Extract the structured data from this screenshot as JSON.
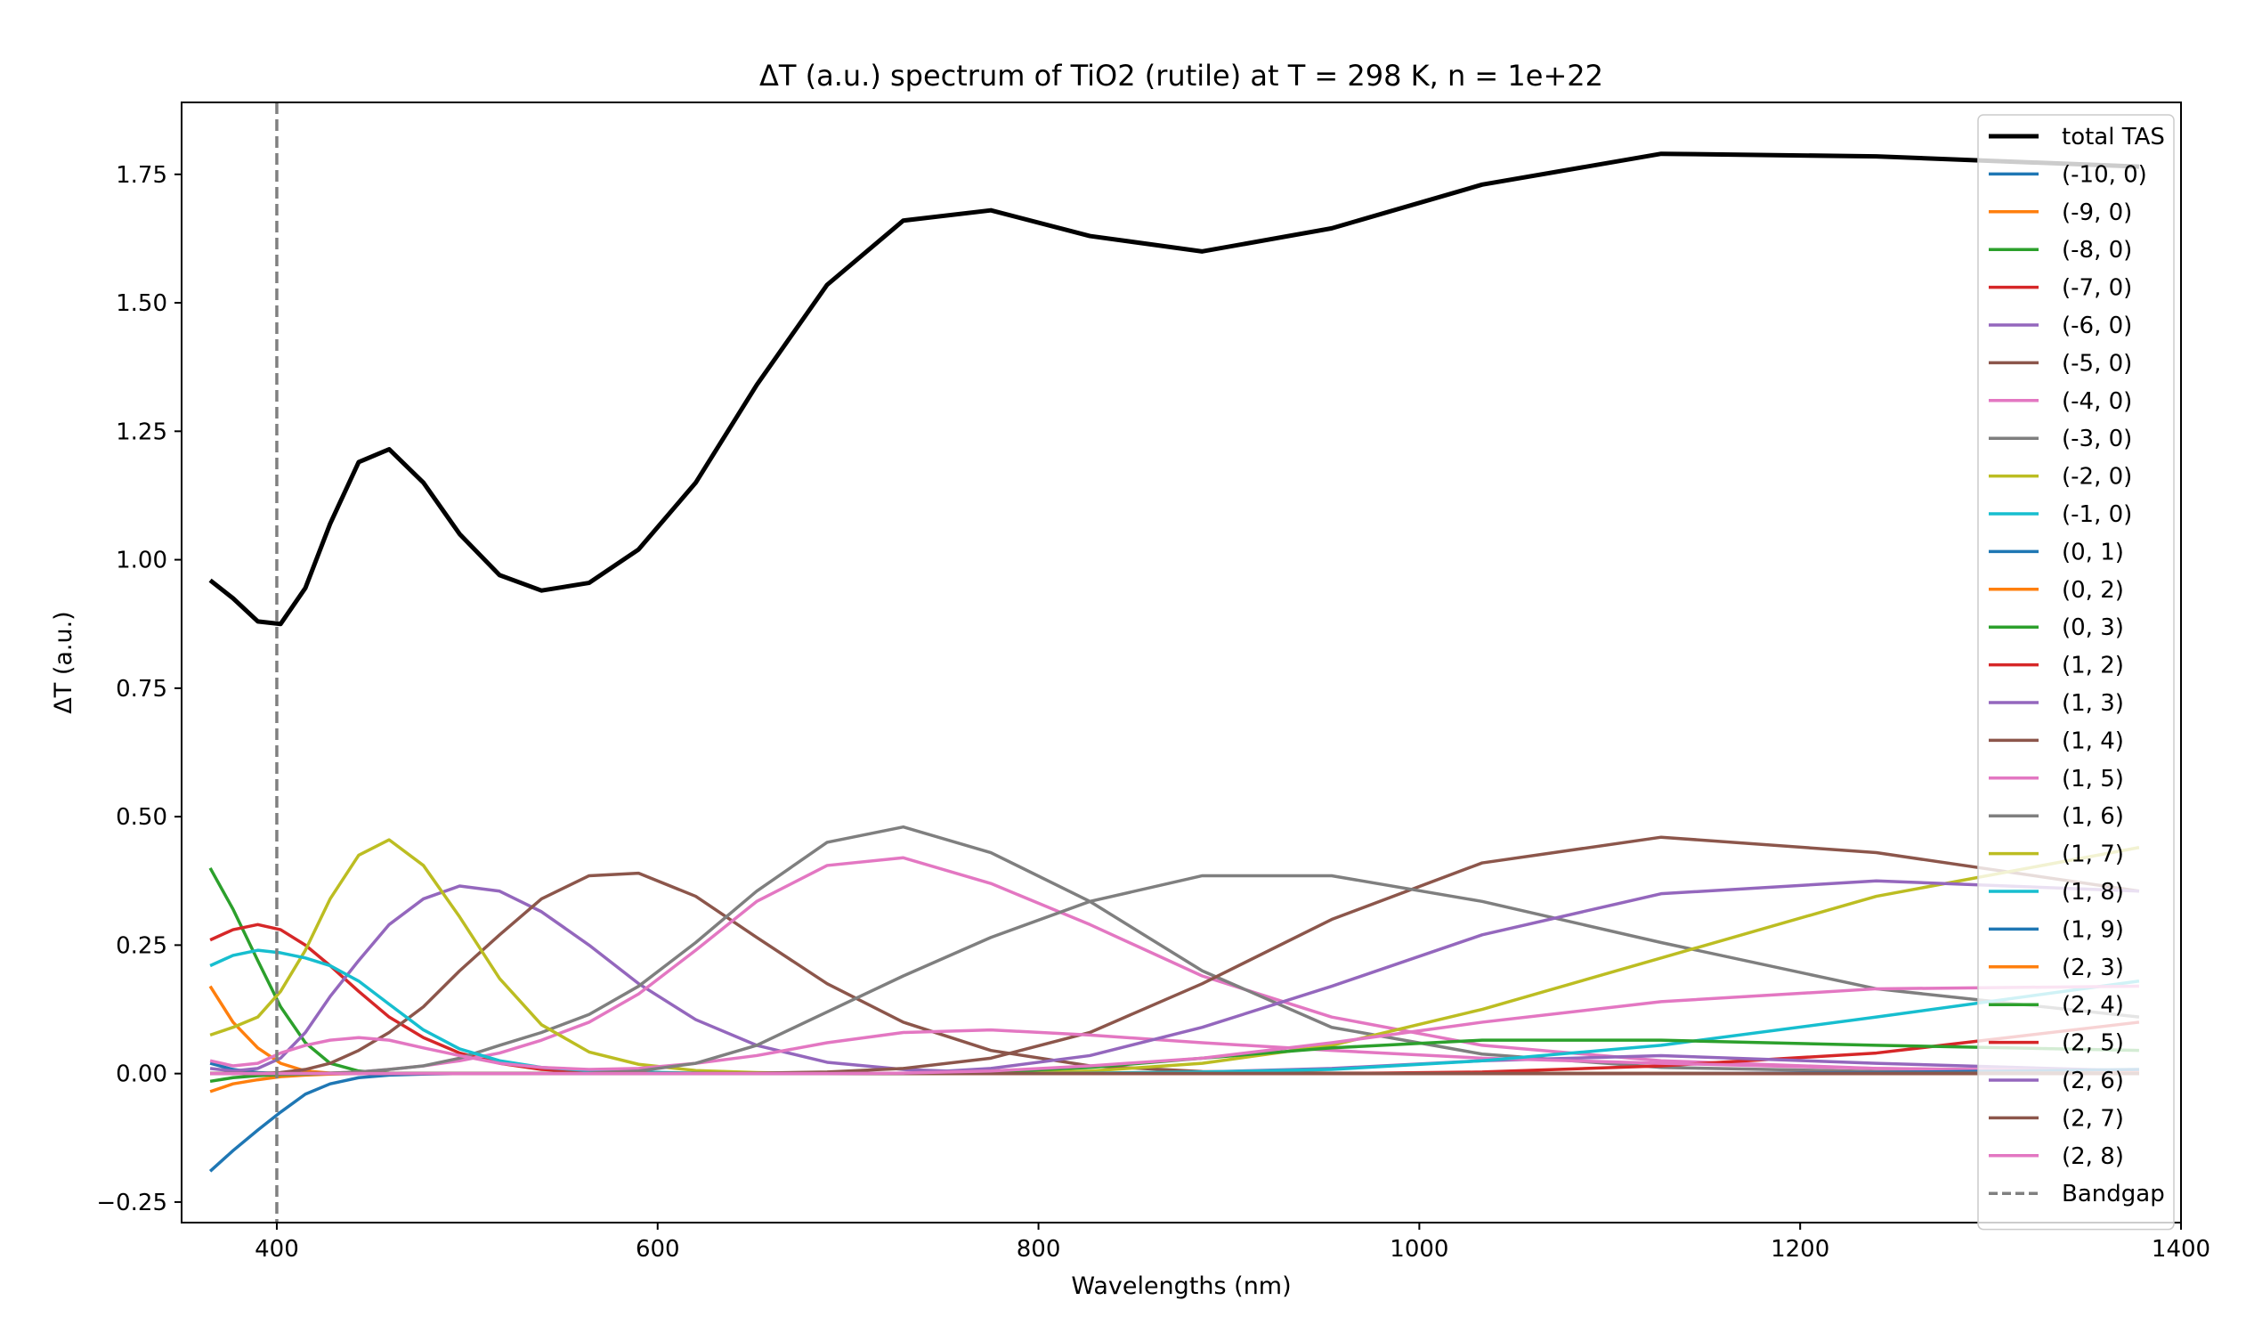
{
  "chart_data": {
    "type": "line",
    "title": "ΔT (a.u.) spectrum of TiO2 (rutile) at T = 298 K, n = 1e+22",
    "xlabel": "Wavelengths (nm)",
    "ylabel": "ΔT (a.u.)",
    "xlim": [
      350,
      1400
    ],
    "ylim": [
      -0.29,
      1.89
    ],
    "xticks": [
      400,
      600,
      800,
      1000,
      1200,
      1400
    ],
    "xtick_labels": [
      "400",
      "600",
      "800",
      "1000",
      "1200",
      "1400"
    ],
    "yticks": [
      -0.25,
      0.0,
      0.25,
      0.5,
      0.75,
      1.0,
      1.25,
      1.5,
      1.75
    ],
    "ytick_labels": [
      "−0.25",
      "0.00",
      "0.25",
      "0.50",
      "0.75",
      "1.00",
      "1.25",
      "1.50",
      "1.75"
    ],
    "grid": false,
    "legend_position": "top-right",
    "x": [
      365,
      377,
      390,
      402,
      415,
      428,
      443,
      459,
      477,
      496,
      517,
      539,
      564,
      590,
      620,
      652,
      689,
      729,
      775,
      827,
      886,
      954,
      1033,
      1127,
      1240,
      1378
    ],
    "bandgap": {
      "name": "Bandgap",
      "x": 400,
      "color": "#808080"
    },
    "series": [
      {
        "name": "total TAS",
        "color": "#000000",
        "width": 5,
        "values": [
          0.96,
          0.925,
          0.88,
          0.875,
          0.945,
          1.07,
          1.19,
          1.215,
          1.15,
          1.05,
          0.97,
          0.94,
          0.955,
          1.02,
          1.15,
          1.34,
          1.535,
          1.66,
          1.68,
          1.63,
          1.6,
          1.645,
          1.73,
          1.79,
          1.785,
          1.765
        ]
      },
      {
        "name": "(-10, 0)",
        "color": "#1f77b4",
        "width": 3.5,
        "values": [
          0.02,
          0.008,
          0.002,
          0.0,
          0,
          0,
          0,
          0,
          0,
          0,
          0,
          0,
          0,
          0,
          0,
          0,
          0,
          0,
          0,
          0,
          0,
          0,
          0,
          0,
          0,
          0
        ]
      },
      {
        "name": "(-9, 0)",
        "color": "#ff7f0e",
        "width": 3.5,
        "values": [
          0.17,
          0.1,
          0.05,
          0.02,
          0.005,
          0.001,
          0,
          0,
          0,
          0,
          0,
          0,
          0,
          0,
          0,
          0,
          0,
          0,
          0,
          0,
          0,
          0,
          0,
          0,
          0,
          0
        ]
      },
      {
        "name": "(-8, 0)",
        "color": "#2ca02c",
        "width": 3.5,
        "values": [
          0.4,
          0.32,
          0.22,
          0.13,
          0.06,
          0.02,
          0.005,
          0.001,
          0,
          0,
          0,
          0,
          0,
          0,
          0,
          0,
          0,
          0,
          0,
          0,
          0,
          0,
          0,
          0,
          0,
          0
        ]
      },
      {
        "name": "(-7, 0)",
        "color": "#d62728",
        "width": 3.5,
        "values": [
          0.26,
          0.28,
          0.29,
          0.28,
          0.25,
          0.21,
          0.16,
          0.11,
          0.07,
          0.04,
          0.02,
          0.008,
          0.003,
          0.001,
          0,
          0,
          0,
          0,
          0,
          0,
          0,
          0,
          0,
          0,
          0,
          0
        ]
      },
      {
        "name": "(-6, 0)",
        "color": "#9467bd",
        "width": 3.5,
        "values": [
          0.01,
          0.005,
          0.01,
          0.03,
          0.08,
          0.15,
          0.22,
          0.29,
          0.34,
          0.365,
          0.355,
          0.315,
          0.25,
          0.175,
          0.105,
          0.055,
          0.022,
          0.008,
          0.002,
          0,
          0,
          0,
          0,
          0,
          0,
          0
        ]
      },
      {
        "name": "(-5, 0)",
        "color": "#8c564b",
        "width": 3.5,
        "values": [
          0,
          0,
          0,
          0.002,
          0.008,
          0.02,
          0.045,
          0.08,
          0.13,
          0.2,
          0.27,
          0.34,
          0.385,
          0.39,
          0.345,
          0.265,
          0.175,
          0.1,
          0.045,
          0.015,
          0.004,
          0.001,
          0,
          0,
          0,
          0
        ]
      },
      {
        "name": "(-4, 0)",
        "color": "#e377c2",
        "width": 3.5,
        "values": [
          0,
          0,
          0,
          0,
          0,
          0.001,
          0.003,
          0.008,
          0.015,
          0.025,
          0.04,
          0.065,
          0.1,
          0.155,
          0.24,
          0.335,
          0.405,
          0.42,
          0.37,
          0.29,
          0.19,
          0.11,
          0.055,
          0.025,
          0.01,
          0.003
        ]
      },
      {
        "name": "(-3, 0)",
        "color": "#7f7f7f",
        "width": 3.5,
        "values": [
          0,
          0,
          0,
          0,
          0,
          0.001,
          0.003,
          0.008,
          0.015,
          0.03,
          0.055,
          0.08,
          0.115,
          0.17,
          0.255,
          0.355,
          0.45,
          0.48,
          0.43,
          0.335,
          0.2,
          0.09,
          0.038,
          0.012,
          0.004,
          0.001
        ]
      },
      {
        "name": "(-2, 0)",
        "color": "#bcbd22",
        "width": 3.5,
        "values": [
          0.075,
          0.09,
          0.11,
          0.16,
          0.24,
          0.34,
          0.425,
          0.455,
          0.405,
          0.305,
          0.185,
          0.095,
          0.042,
          0.018,
          0.006,
          0.002,
          0,
          0,
          0,
          0,
          0,
          0,
          0,
          0,
          0,
          0
        ]
      },
      {
        "name": "(-1, 0)",
        "color": "#17becf",
        "width": 3.5,
        "values": [
          0.21,
          0.23,
          0.24,
          0.235,
          0.225,
          0.21,
          0.18,
          0.135,
          0.085,
          0.048,
          0.025,
          0.012,
          0.006,
          0.003,
          0.001,
          0,
          0,
          0,
          0,
          0,
          0,
          0,
          0,
          0,
          0,
          0
        ]
      },
      {
        "name": "(0, 1)",
        "color": "#1f77b4",
        "width": 3.5,
        "values": [
          -0.19,
          -0.15,
          -0.11,
          -0.075,
          -0.04,
          -0.02,
          -0.008,
          -0.003,
          -0.001,
          0,
          0,
          0,
          0,
          0,
          0,
          0,
          0,
          0,
          0,
          0,
          0,
          0,
          0,
          0,
          0,
          0
        ]
      },
      {
        "name": "(0, 2)",
        "color": "#ff7f0e",
        "width": 3.5,
        "values": [
          -0.035,
          -0.02,
          -0.012,
          -0.006,
          -0.003,
          -0.001,
          0,
          0,
          0,
          0,
          0,
          0,
          0,
          0,
          0,
          0,
          0,
          0,
          0,
          0,
          0,
          0,
          0,
          0,
          0,
          0
        ]
      },
      {
        "name": "(0, 3)",
        "color": "#2ca02c",
        "width": 3.5,
        "values": [
          -0.015,
          -0.008,
          -0.004,
          -0.002,
          -0.001,
          0,
          0,
          0,
          0,
          0,
          0,
          0,
          0,
          0,
          0,
          0,
          0,
          0,
          0,
          0,
          0,
          0,
          0,
          0,
          0,
          0
        ]
      },
      {
        "name": "(1, 2)",
        "color": "#d62728",
        "width": 3.5,
        "values": [
          0,
          0,
          0,
          0,
          0,
          0,
          0,
          0,
          0,
          0,
          0,
          0,
          0,
          0,
          0,
          0,
          0,
          0,
          0,
          0,
          0,
          0,
          0.003,
          0.015,
          0.04,
          0.1
        ]
      },
      {
        "name": "(1, 3)",
        "color": "#9467bd",
        "width": 3.5,
        "values": [
          0,
          0,
          0,
          0,
          0,
          0,
          0,
          0,
          0,
          0,
          0,
          0,
          0,
          0,
          0,
          0,
          0,
          0,
          0,
          0,
          0.003,
          0.01,
          0.025,
          0.035,
          0.02,
          0.005
        ]
      },
      {
        "name": "(1, 4)",
        "color": "#8c564b",
        "width": 3.5,
        "values": [
          0,
          0,
          0,
          0,
          0,
          0,
          0,
          0,
          0,
          0,
          0,
          0,
          0,
          0,
          0,
          0.001,
          0.003,
          0.01,
          0.03,
          0.08,
          0.175,
          0.3,
          0.41,
          0.46,
          0.43,
          0.355
        ]
      },
      {
        "name": "(1, 5)",
        "color": "#e377c2",
        "width": 3.5,
        "values": [
          0.025,
          0.015,
          0.02,
          0.04,
          0.055,
          0.065,
          0.07,
          0.065,
          0.05,
          0.035,
          0.02,
          0.012,
          0.008,
          0.01,
          0.02,
          0.035,
          0.06,
          0.08,
          0.085,
          0.075,
          0.06,
          0.045,
          0.03,
          0.02,
          0.01,
          0.005
        ]
      },
      {
        "name": "(1, 6)",
        "color": "#7f7f7f",
        "width": 3.5,
        "values": [
          0,
          0,
          0,
          0,
          0,
          0,
          0,
          0,
          0,
          0,
          0,
          0,
          0.001,
          0.005,
          0.02,
          0.055,
          0.12,
          0.19,
          0.265,
          0.335,
          0.385,
          0.385,
          0.335,
          0.255,
          0.165,
          0.11
        ]
      },
      {
        "name": "(1, 7)",
        "color": "#bcbd22",
        "width": 3.5,
        "values": [
          0,
          0,
          0,
          0,
          0,
          0,
          0,
          0,
          0,
          0,
          0,
          0,
          0,
          0,
          0,
          0,
          0,
          0,
          0,
          0.005,
          0.02,
          0.055,
          0.125,
          0.225,
          0.345,
          0.44
        ]
      },
      {
        "name": "(1, 8)",
        "color": "#17becf",
        "width": 3.5,
        "values": [
          0,
          0,
          0,
          0,
          0,
          0,
          0,
          0,
          0,
          0,
          0,
          0,
          0,
          0,
          0,
          0,
          0,
          0,
          0,
          0.001,
          0.003,
          0.008,
          0.025,
          0.055,
          0.11,
          0.18
        ]
      },
      {
        "name": "(1, 9)",
        "color": "#1f77b4",
        "width": 3.5,
        "values": [
          0,
          0,
          0,
          0,
          0,
          0,
          0,
          0,
          0,
          0,
          0,
          0,
          0,
          0,
          0,
          0,
          0,
          0,
          0,
          0,
          0,
          0,
          0,
          0,
          0.002,
          0.008
        ]
      },
      {
        "name": "(2, 3)",
        "color": "#ff7f0e",
        "width": 3.5,
        "values": [
          0,
          0,
          0,
          0,
          0,
          0,
          0,
          0,
          0,
          0,
          0,
          0,
          0,
          0,
          0,
          0,
          0,
          0,
          0,
          0,
          0,
          0,
          0,
          0,
          0,
          0.001
        ]
      },
      {
        "name": "(2, 4)",
        "color": "#2ca02c",
        "width": 3.5,
        "values": [
          0,
          0,
          0,
          0,
          0,
          0,
          0,
          0,
          0,
          0,
          0,
          0,
          0,
          0,
          0,
          0,
          0,
          0,
          0.003,
          0.012,
          0.03,
          0.05,
          0.065,
          0.065,
          0.055,
          0.045
        ]
      },
      {
        "name": "(2, 5)",
        "color": "#d62728",
        "width": 3.5,
        "values": [
          0,
          0,
          0,
          0,
          0,
          0,
          0,
          0,
          0,
          0,
          0,
          0,
          0,
          0,
          0,
          0,
          0,
          0,
          0,
          0,
          0,
          0,
          0,
          0,
          0,
          0
        ]
      },
      {
        "name": "(2, 6)",
        "color": "#9467bd",
        "width": 3.5,
        "values": [
          0,
          0,
          0,
          0,
          0,
          0,
          0,
          0,
          0,
          0,
          0,
          0,
          0,
          0,
          0,
          0,
          0,
          0,
          0.01,
          0.035,
          0.09,
          0.17,
          0.27,
          0.35,
          0.375,
          0.355
        ]
      },
      {
        "name": "(2, 7)",
        "color": "#8c564b",
        "width": 3.5,
        "values": [
          0,
          0,
          0,
          0,
          0,
          0,
          0,
          0,
          0,
          0,
          0,
          0,
          0,
          0,
          0,
          0,
          0,
          0,
          0,
          0,
          0,
          0,
          0,
          0,
          0,
          0
        ]
      },
      {
        "name": "(2, 8)",
        "color": "#e377c2",
        "width": 3.5,
        "values": [
          0,
          0,
          0,
          0,
          0,
          0,
          0,
          0,
          0,
          0,
          0,
          0,
          0,
          0,
          0,
          0,
          0,
          0.001,
          0.005,
          0.015,
          0.03,
          0.06,
          0.1,
          0.14,
          0.165,
          0.17
        ]
      }
    ]
  }
}
